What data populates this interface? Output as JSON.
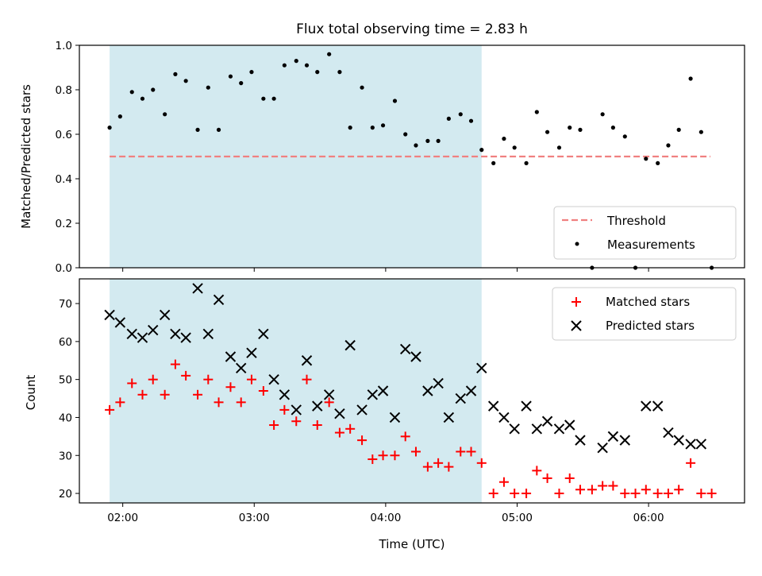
{
  "chart_data": [
    {
      "type": "scatter",
      "title": "Flux total observing time = 2.83 h",
      "xlabel": "",
      "ylabel": "Matched/Predicted stars",
      "ylim": [
        0.0,
        1.0
      ],
      "yticks": [
        "0.0",
        "0.2",
        "0.4",
        "0.6",
        "0.8",
        "1.0"
      ],
      "xticks": [
        2.0,
        3.0,
        4.0,
        5.0,
        6.0
      ],
      "xlim": [
        1.67,
        6.73
      ],
      "highlight_span": [
        1.9,
        4.73
      ],
      "highlight_color": "#d3eaf0",
      "threshold": {
        "name": "Threshold",
        "y": 0.5,
        "x_range": [
          1.9,
          6.47
        ],
        "color": "#f08080"
      },
      "legend": {
        "position": "lower-right",
        "entries": [
          "Threshold",
          "Measurements"
        ]
      },
      "series": [
        {
          "name": "Measurements",
          "color": "#000000",
          "x": [
            1.9,
            1.98,
            2.07,
            2.15,
            2.23,
            2.32,
            2.4,
            2.48,
            2.57,
            2.65,
            2.73,
            2.82,
            2.9,
            2.98,
            3.07,
            3.15,
            3.23,
            3.32,
            3.4,
            3.48,
            3.57,
            3.65,
            3.73,
            3.82,
            3.9,
            3.98,
            4.07,
            4.15,
            4.23,
            4.32,
            4.4,
            4.48,
            4.57,
            4.65,
            4.73,
            4.82,
            4.9,
            4.98,
            5.07,
            5.15,
            5.23,
            5.32,
            5.4,
            5.48,
            5.57,
            5.65,
            5.73,
            5.82,
            5.9,
            5.98,
            6.07,
            6.15,
            6.23,
            6.32,
            6.4,
            6.48
          ],
          "y": [
            0.63,
            0.68,
            0.79,
            0.76,
            0.8,
            0.69,
            0.87,
            0.84,
            0.62,
            0.81,
            0.62,
            0.86,
            0.83,
            0.88,
            0.76,
            0.76,
            0.91,
            0.93,
            0.91,
            0.88,
            0.96,
            0.88,
            0.63,
            0.81,
            0.63,
            0.64,
            0.75,
            0.6,
            0.55,
            0.57,
            0.57,
            0.67,
            0.69,
            0.66,
            0.53,
            0.47,
            0.58,
            0.54,
            0.47,
            0.7,
            0.61,
            0.54,
            0.63,
            0.62,
            0.0,
            0.69,
            0.63,
            0.59,
            0.0,
            0.49,
            0.47,
            0.55,
            0.62,
            0.85,
            0.61,
            0.0
          ]
        }
      ]
    },
    {
      "type": "scatter",
      "title": "",
      "xlabel": "Time (UTC)",
      "ylabel": "Count",
      "ylim": [
        17.5,
        76.5
      ],
      "yticks": [
        "20",
        "30",
        "40",
        "50",
        "60",
        "70"
      ],
      "xticks": [
        2.0,
        3.0,
        4.0,
        5.0,
        6.0
      ],
      "xtick_labels": [
        "02:00",
        "03:00",
        "04:00",
        "05:00",
        "06:00"
      ],
      "xlim": [
        1.67,
        6.73
      ],
      "highlight_span": [
        1.9,
        4.73
      ],
      "highlight_color": "#d3eaf0",
      "legend": {
        "position": "upper-right",
        "entries": [
          "Matched stars",
          "Predicted stars"
        ]
      },
      "series": [
        {
          "name": "Matched stars",
          "marker": "plus",
          "color": "#ff0000",
          "x": [
            1.9,
            1.98,
            2.07,
            2.15,
            2.23,
            2.32,
            2.4,
            2.48,
            2.57,
            2.65,
            2.73,
            2.82,
            2.9,
            2.98,
            3.07,
            3.15,
            3.23,
            3.32,
            3.4,
            3.48,
            3.57,
            3.65,
            3.73,
            3.82,
            3.9,
            3.98,
            4.07,
            4.15,
            4.23,
            4.32,
            4.4,
            4.48,
            4.57,
            4.65,
            4.73,
            4.82,
            4.9,
            4.98,
            5.07,
            5.15,
            5.23,
            5.32,
            5.4,
            5.48,
            5.57,
            5.65,
            5.73,
            5.82,
            5.9,
            5.98,
            6.07,
            6.15,
            6.23,
            6.32,
            6.4,
            6.48
          ],
          "y": [
            42,
            44,
            49,
            46,
            50,
            46,
            54,
            51,
            46,
            50,
            44,
            48,
            44,
            50,
            47,
            38,
            42,
            39,
            50,
            38,
            44,
            36,
            37,
            34,
            29,
            30,
            30,
            35,
            31,
            27,
            28,
            27,
            31,
            31,
            28,
            20,
            23,
            20,
            20,
            26,
            24,
            20,
            24,
            21,
            21,
            22,
            22,
            20,
            20,
            21,
            20,
            20,
            21,
            28,
            20,
            20
          ]
        },
        {
          "name": "Predicted stars",
          "marker": "x",
          "color": "#000000",
          "x": [
            1.9,
            1.98,
            2.07,
            2.15,
            2.23,
            2.32,
            2.4,
            2.48,
            2.57,
            2.65,
            2.73,
            2.82,
            2.9,
            2.98,
            3.07,
            3.15,
            3.23,
            3.32,
            3.4,
            3.48,
            3.57,
            3.65,
            3.73,
            3.82,
            3.9,
            3.98,
            4.07,
            4.15,
            4.23,
            4.32,
            4.4,
            4.48,
            4.57,
            4.65,
            4.73,
            4.82,
            4.9,
            4.98,
            5.07,
            5.15,
            5.23,
            5.32,
            5.4,
            5.48,
            5.65,
            5.73,
            5.82,
            5.98,
            6.07,
            6.15,
            6.23,
            6.32,
            6.4
          ],
          "y": [
            67,
            65,
            62,
            61,
            63,
            67,
            62,
            61,
            74,
            62,
            71,
            56,
            53,
            57,
            62,
            50,
            46,
            42,
            55,
            43,
            46,
            41,
            59,
            42,
            46,
            47,
            40,
            58,
            56,
            47,
            49,
            40,
            45,
            47,
            53,
            43,
            40,
            37,
            43,
            37,
            39,
            37,
            38,
            34,
            32,
            35,
            34,
            43,
            43,
            36,
            34,
            33,
            33
          ]
        }
      ]
    }
  ]
}
